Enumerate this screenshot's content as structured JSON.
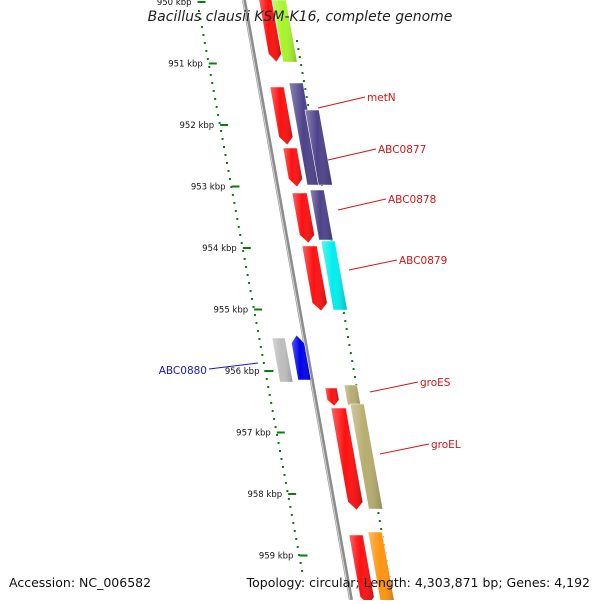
{
  "title": "Bacillus clausii KSM-K16, complete genome",
  "accession": "Accession: NC_006582",
  "summary": "Topology: circular; Length: 4,303,871 bp; Genes: 4,192",
  "ruler": {
    "labels": [
      "950 kbp",
      "951 kbp",
      "952 kbp",
      "953 kbp",
      "954 kbp",
      "955 kbp",
      "956 kbp",
      "957 kbp",
      "958 kbp",
      "959 kbp"
    ]
  },
  "genes": [
    {
      "id": "g-top-red",
      "strand": "forward",
      "color": "#ff1010"
    },
    {
      "id": "g-top-green",
      "strand": "forward",
      "color": "#a6f52a"
    },
    {
      "id": "g-fwd-red-1",
      "strand": "forward",
      "color": "#ff1010"
    },
    {
      "id": "metN",
      "label": "metN",
      "strand": "forward",
      "color": "#4e4289"
    },
    {
      "id": "g-fwd-red-2",
      "strand": "forward",
      "color": "#ff1010"
    },
    {
      "id": "ABC0877",
      "label": "ABC0877",
      "strand": "forward",
      "color": "#4e4289"
    },
    {
      "id": "g-fwd-red-3",
      "strand": "forward",
      "color": "#ff1010"
    },
    {
      "id": "ABC0878",
      "label": "ABC0878",
      "strand": "forward",
      "color": "#4e4289"
    },
    {
      "id": "g-fwd-red-4",
      "strand": "forward",
      "color": "#ff1010"
    },
    {
      "id": "ABC0879",
      "label": "ABC0879",
      "strand": "forward",
      "color": "#00eeee"
    },
    {
      "id": "g-rev-grey",
      "strand": "reverse",
      "color": "#bdbdbd"
    },
    {
      "id": "ABC0880",
      "label": "ABC0880",
      "strand": "reverse",
      "color": "#0000ee"
    },
    {
      "id": "g-fwd-red-5",
      "strand": "forward",
      "color": "#ff1010"
    },
    {
      "id": "groES",
      "label": "groES",
      "strand": "forward",
      "color": "#b7ad70"
    },
    {
      "id": "g-fwd-red-6",
      "strand": "forward",
      "color": "#ff1010"
    },
    {
      "id": "groEL",
      "label": "groEL",
      "strand": "forward",
      "color": "#b7ad70"
    },
    {
      "id": "g-bot-red",
      "strand": "forward",
      "color": "#ff1010"
    },
    {
      "id": "g-bot-orange",
      "strand": "forward",
      "color": "#ff9410"
    }
  ],
  "colors": {
    "backbone": "#8c8c8c",
    "tick": "#0f7a0f",
    "label_forward": "#d41414",
    "label_reverse": "#1818c8"
  }
}
